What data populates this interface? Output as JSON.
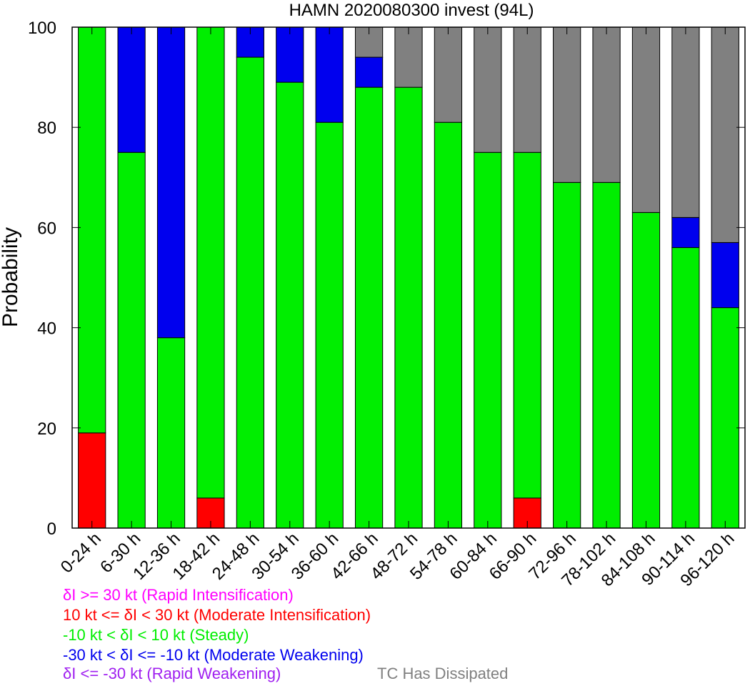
{
  "chart_data": {
    "type": "bar",
    "stacked": true,
    "title": "HAMN 2020080300 invest (94L)",
    "xlabel": "",
    "ylabel": "Probability",
    "ylim": [
      0,
      100
    ],
    "yticks": [
      0,
      20,
      40,
      60,
      80,
      100
    ],
    "categories": [
      "0-24 h",
      "6-30 h",
      "12-36 h",
      "18-42 h",
      "24-48 h",
      "30-54 h",
      "36-60 h",
      "42-66 h",
      "48-72 h",
      "54-78 h",
      "60-84 h",
      "66-90 h",
      "72-96 h",
      "78-102 h",
      "84-108 h",
      "90-114 h",
      "96-120 h"
    ],
    "series": [
      {
        "key": "ri",
        "color": "#ff00ff",
        "values": [
          0,
          0,
          0,
          0,
          0,
          0,
          0,
          0,
          0,
          0,
          0,
          0,
          0,
          0,
          0,
          0,
          0
        ]
      },
      {
        "key": "mi",
        "color": "#ff0000",
        "values": [
          19,
          0,
          0,
          6,
          0,
          0,
          0,
          0,
          0,
          0,
          0,
          6,
          0,
          0,
          0,
          0,
          0
        ]
      },
      {
        "key": "steady",
        "color": "#00ee00",
        "values": [
          81,
          75,
          38,
          94,
          94,
          89,
          81,
          88,
          88,
          81,
          75,
          69,
          69,
          69,
          63,
          56,
          44
        ]
      },
      {
        "key": "mw",
        "color": "#0000ee",
        "values": [
          0,
          25,
          62,
          0,
          6,
          11,
          19,
          6,
          0,
          0,
          0,
          0,
          0,
          0,
          0,
          6,
          13
        ]
      },
      {
        "key": "rw",
        "color": "#a020f0",
        "values": [
          0,
          0,
          0,
          0,
          0,
          0,
          0,
          0,
          0,
          0,
          0,
          0,
          0,
          0,
          0,
          0,
          0
        ]
      },
      {
        "key": "dissipated",
        "color": "#808080",
        "values": [
          0,
          0,
          0,
          0,
          0,
          0,
          0,
          6,
          12,
          19,
          25,
          25,
          31,
          31,
          37,
          38,
          43
        ]
      }
    ],
    "legend": [
      {
        "text": "δI >= 30 kt (Rapid Intensification)",
        "color": "#ff00ff"
      },
      {
        "text": "10 kt <= δI < 30 kt (Moderate Intensification)",
        "color": "#ff0000"
      },
      {
        "text": "-10 kt < δI < 10 kt (Steady)",
        "color": "#00ee00"
      },
      {
        "text": "-30 kt < δI <= -10 kt (Moderate Weakening)",
        "color": "#0000ee"
      },
      {
        "text": "δI <= -30 kt (Rapid Weakening)",
        "color": "#a020f0"
      },
      {
        "text": "TC Has Dissipated",
        "color": "#808080"
      }
    ]
  }
}
